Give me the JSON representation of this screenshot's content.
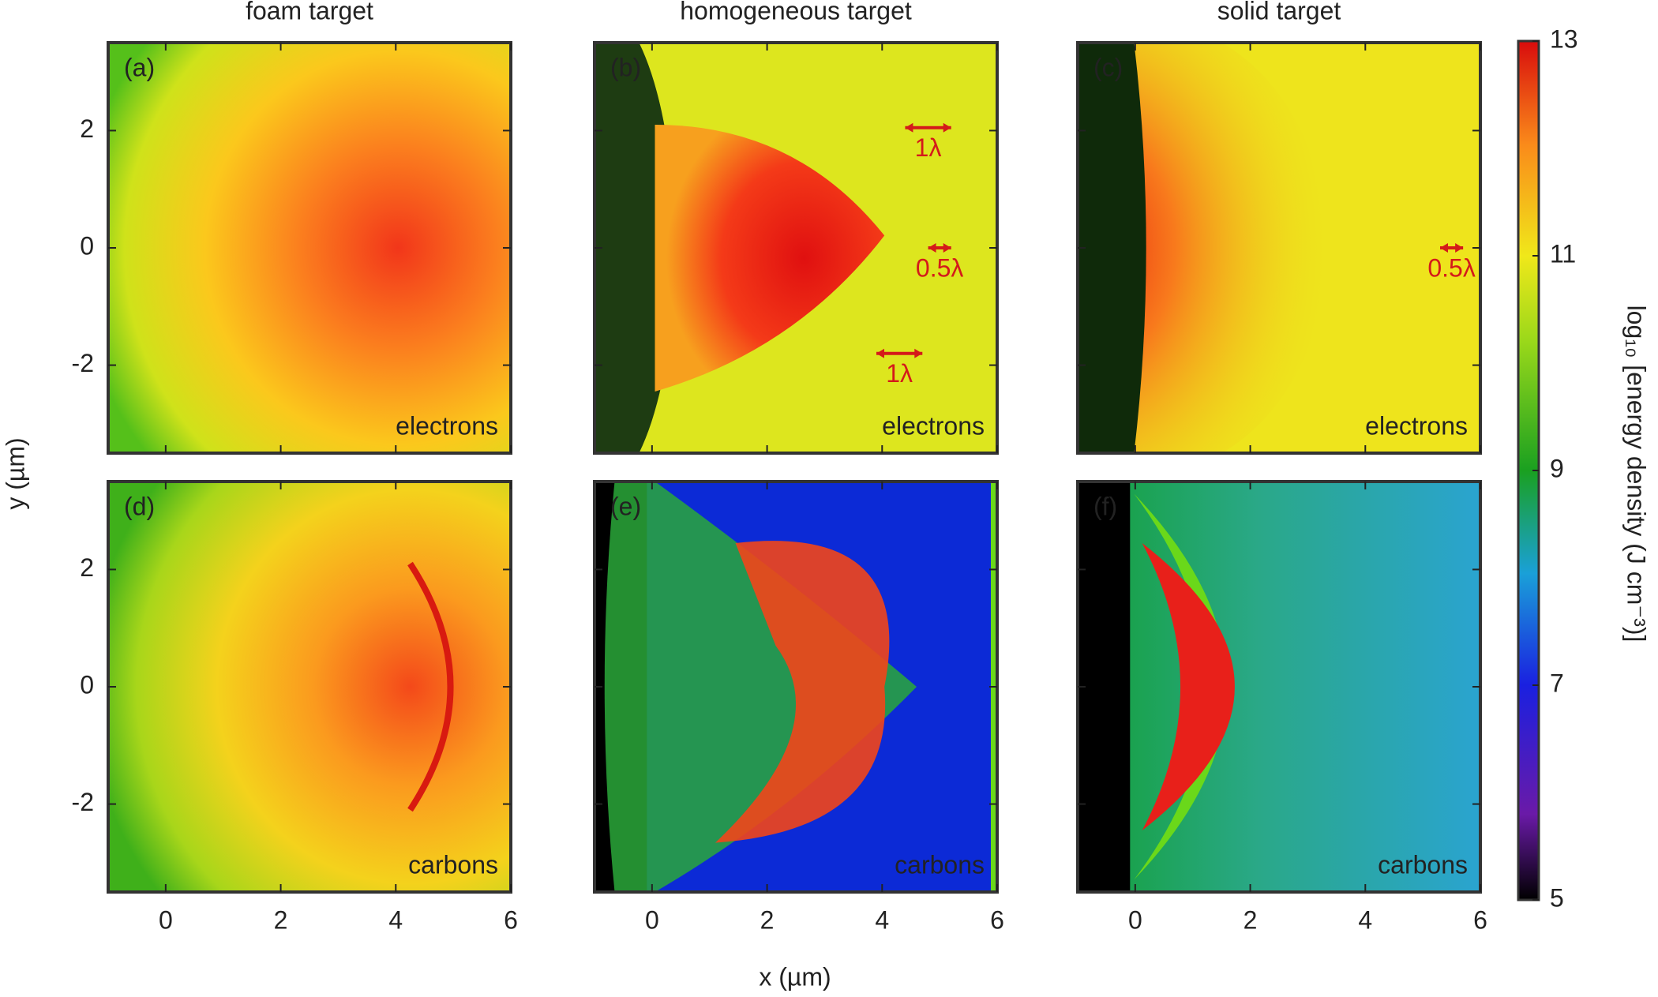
{
  "chart_data": {
    "type": "heatmap",
    "x_label": "x (µm)",
    "y_label": "y (µm)",
    "columns": [
      "foam target",
      "homogeneous target",
      "solid target"
    ],
    "xlim": [
      -1,
      6
    ],
    "xticks": [
      0,
      2,
      4,
      6
    ],
    "ylim": [
      -3.5,
      3.5
    ],
    "yticks": [
      -2,
      0,
      2
    ],
    "panels": [
      {
        "label": "(a)",
        "species": "electrons"
      },
      {
        "label": "(b)",
        "species": "electrons",
        "annotations": [
          "1λ",
          "0.5λ",
          "1λ"
        ]
      },
      {
        "label": "(c)",
        "species": "electrons",
        "annotations": [
          "0.5λ"
        ]
      },
      {
        "label": "(d)",
        "species": "carbons"
      },
      {
        "label": "(e)",
        "species": "carbons"
      },
      {
        "label": "(f)",
        "species": "carbons"
      }
    ],
    "colorbar": {
      "label": "log₁₀ [energy density (J cm⁻³)]",
      "lim": [
        5,
        13
      ],
      "ticks": [
        5,
        7,
        9,
        11,
        13
      ]
    }
  }
}
